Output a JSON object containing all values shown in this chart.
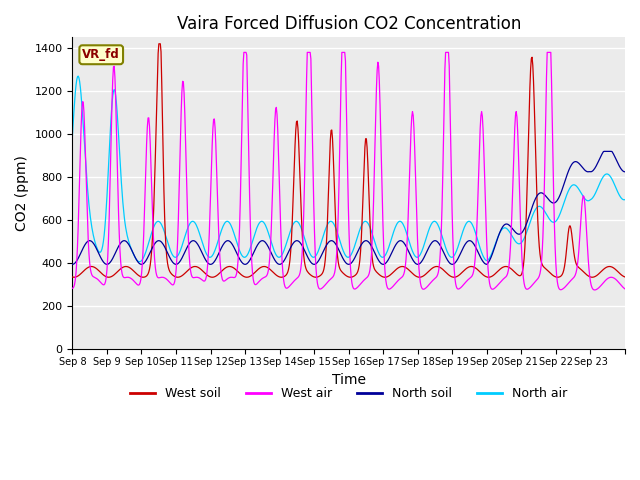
{
  "title": "Vaira Forced Diffusion CO2 Concentration",
  "xlabel": "Time",
  "ylabel": "CO2 (ppm)",
  "ylim": [
    0,
    1450
  ],
  "yticks": [
    0,
    200,
    400,
    600,
    800,
    1000,
    1200,
    1400
  ],
  "date_labels": [
    "Sep 8",
    "Sep 9",
    "Sep 10",
    "Sep 11",
    "Sep 12",
    "Sep 13",
    "Sep 14",
    "Sep 15",
    "Sep 16",
    "Sep 17",
    "Sep 18",
    "Sep 19",
    "Sep 20",
    "Sep 21",
    "Sep 22",
    "Sep 23"
  ],
  "legend_label": "VR_fd",
  "colors": {
    "west_soil": "#cc0000",
    "west_air": "#ff00ff",
    "north_soil": "#000099",
    "north_air": "#00ccff"
  },
  "bg_color": "#ebebeb",
  "title_fontsize": 12,
  "axis_fontsize": 10,
  "tick_fontsize": 8
}
